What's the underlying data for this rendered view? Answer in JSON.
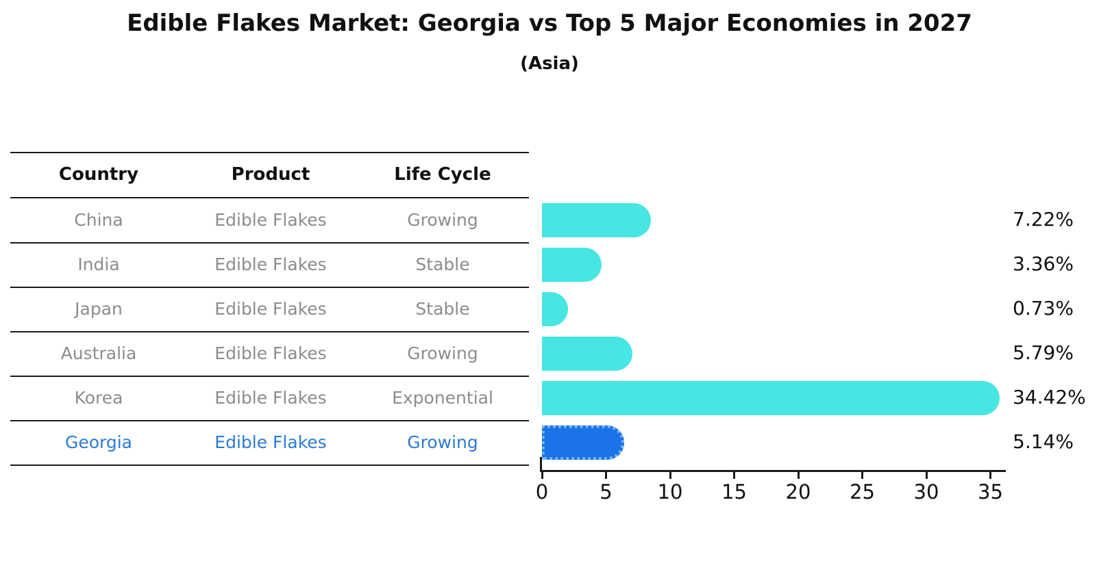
{
  "header": {
    "title": "Edible Flakes Market: Georgia vs Top 5 Major Economies in 2027",
    "subtitle": "(Asia)"
  },
  "table": {
    "columns": [
      "Country",
      "Product",
      "Life Cycle"
    ],
    "rows": [
      {
        "country": "China",
        "product": "Edible Flakes",
        "life_cycle": "Growing",
        "highlight": false
      },
      {
        "country": "India",
        "product": "Edible Flakes",
        "life_cycle": "Stable",
        "highlight": false
      },
      {
        "country": "Japan",
        "product": "Edible Flakes",
        "life_cycle": "Stable",
        "highlight": false
      },
      {
        "country": "Australia",
        "product": "Edible Flakes",
        "life_cycle": "Growing",
        "highlight": false
      },
      {
        "country": "Korea",
        "product": "Edible Flakes",
        "life_cycle": "Exponential",
        "highlight": false
      },
      {
        "country": "Georgia",
        "product": "Edible Flakes",
        "life_cycle": "Growing",
        "highlight": true
      }
    ]
  },
  "chart_data": {
    "type": "bar",
    "orientation": "horizontal",
    "title": "Edible Flakes Market: Georgia vs Top 5 Major Economies in 2027",
    "subtitle": "(Asia)",
    "categories": [
      "China",
      "India",
      "Japan",
      "Australia",
      "Korea",
      "Georgia"
    ],
    "values": [
      7.22,
      3.36,
      0.73,
      5.79,
      34.42,
      5.14
    ],
    "value_labels": [
      "7.22%",
      "3.36%",
      "0.73%",
      "5.79%",
      "34.42%",
      "5.14%"
    ],
    "xlabel": "",
    "ylabel": "",
    "xlim": [
      0,
      36
    ],
    "x_ticks": [
      0,
      5,
      10,
      15,
      20,
      25,
      30,
      35
    ],
    "grid": false,
    "legend": false,
    "bar_color": "#48e6e3",
    "highlight_bar_color": "#1a73e8",
    "highlight_category": "Georgia"
  },
  "colors": {
    "background": "#ffffff",
    "text_primary": "#111111",
    "text_muted": "#8c8c8c",
    "highlight_text": "#2c7bd2",
    "bar_cyan": "#48e6e3",
    "bar_blue": "#1a73e8",
    "axis": "#1a1a1a"
  }
}
